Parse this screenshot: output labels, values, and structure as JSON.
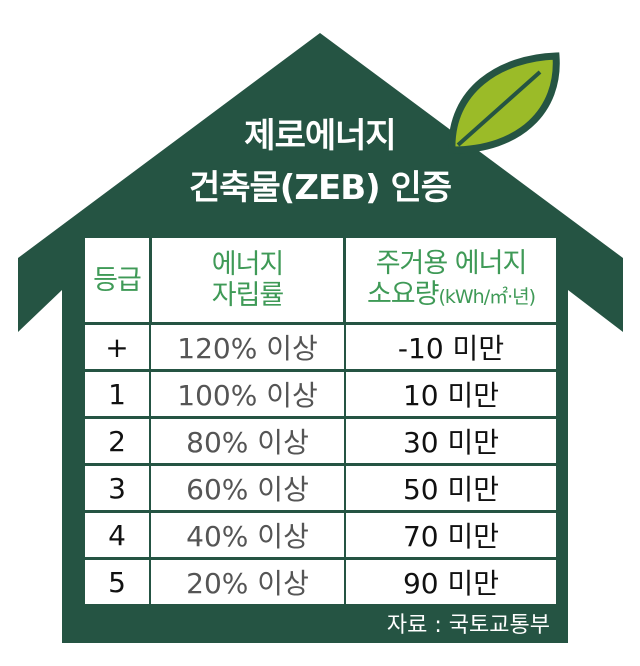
{
  "title_line1": "제로에너지",
  "title_line2": "건축물(ZEB) 인증",
  "headers": {
    "grade": "등급",
    "rate_line1": "에너지",
    "rate_line2": "자립률",
    "usage_line1": "주거용 에너지",
    "usage_line2": "소요량",
    "usage_unit": "(kWh/㎡·년)"
  },
  "rows": [
    {
      "grade": "+",
      "rate": "120% 이상",
      "usage": "-10 미만"
    },
    {
      "grade": "1",
      "rate": "100% 이상",
      "usage": "10 미만"
    },
    {
      "grade": "2",
      "rate": "80% 이상",
      "usage": "30 미만"
    },
    {
      "grade": "3",
      "rate": "60% 이상",
      "usage": "50 미만"
    },
    {
      "grade": "4",
      "rate": "40% 이상",
      "usage": "70 미만"
    },
    {
      "grade": "5",
      "rate": "20% 이상",
      "usage": "90 미만"
    }
  ],
  "source": "자료 : 국토교통부",
  "colors": {
    "house": "#255443",
    "header_text": "#3f9a57",
    "leaf": "#9bbb28"
  },
  "icons": [
    "house-shape",
    "leaf-icon"
  ]
}
